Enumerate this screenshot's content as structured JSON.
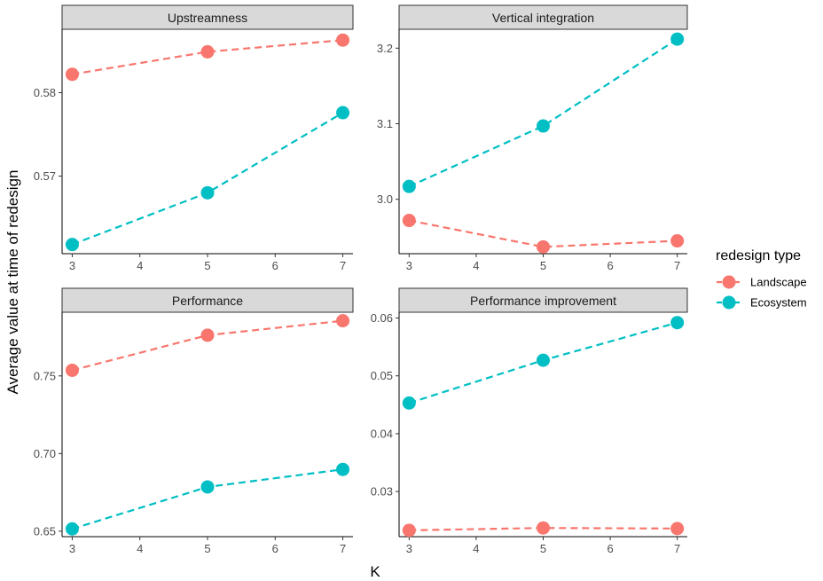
{
  "chart_data": {
    "type": "line",
    "facet_layout": "2x2",
    "x": [
      3,
      5,
      7
    ],
    "xlabel": "K",
    "ylabel": "Average value at time of redesign",
    "x_ticks": [
      3,
      4,
      5,
      6,
      7
    ],
    "xlim": [
      2.85,
      7.15
    ],
    "line_style": "dashed",
    "legend": {
      "title": "redesign type",
      "position": "right",
      "entries": [
        "Landscape",
        "Ecosystem"
      ]
    },
    "colors": {
      "Landscape": "#F8766D",
      "Ecosystem": "#00BFC4"
    },
    "panels": [
      {
        "title": "Upstreamness",
        "ylim": [
          0.5607,
          0.5876
        ],
        "y_ticks": [
          0.57,
          0.58
        ],
        "y_tick_labels": [
          "0.57",
          "0.58"
        ],
        "series": [
          {
            "name": "Landscape",
            "values": [
              0.5822,
              0.5849,
              0.5863
            ]
          },
          {
            "name": "Ecosystem",
            "values": [
              0.5618,
              0.568,
              0.5776
            ]
          }
        ]
      },
      {
        "title": "Vertical integration",
        "ylim": [
          2.928,
          3.225
        ],
        "y_ticks": [
          3.0,
          3.1,
          3.2
        ],
        "y_tick_labels": [
          "3.0",
          "3.1",
          "3.2"
        ],
        "series": [
          {
            "name": "Landscape",
            "values": [
              2.972,
              2.937,
              2.945
            ]
          },
          {
            "name": "Ecosystem",
            "values": [
              3.017,
              3.097,
              3.212
            ]
          }
        ]
      },
      {
        "title": "Performance",
        "ylim": [
          0.6465,
          0.791
        ],
        "y_ticks": [
          0.65,
          0.7,
          0.75
        ],
        "y_tick_labels": [
          "0.65",
          "0.70",
          "0.75"
        ],
        "series": [
          {
            "name": "Landscape",
            "values": [
              0.7536,
              0.7762,
              0.7855
            ]
          },
          {
            "name": "Ecosystem",
            "values": [
              0.6515,
              0.6785,
              0.6898
            ]
          }
        ]
      },
      {
        "title": "Performance improvement",
        "ylim": [
          0.0222,
          0.061
        ],
        "y_ticks": [
          0.03,
          0.04,
          0.05,
          0.06
        ],
        "y_tick_labels": [
          "0.03",
          "0.04",
          "0.05",
          "0.06"
        ],
        "series": [
          {
            "name": "Landscape",
            "values": [
              0.0233,
              0.0237,
              0.0236
            ]
          },
          {
            "name": "Ecosystem",
            "values": [
              0.0453,
              0.0527,
              0.0592
            ]
          }
        ]
      }
    ]
  }
}
